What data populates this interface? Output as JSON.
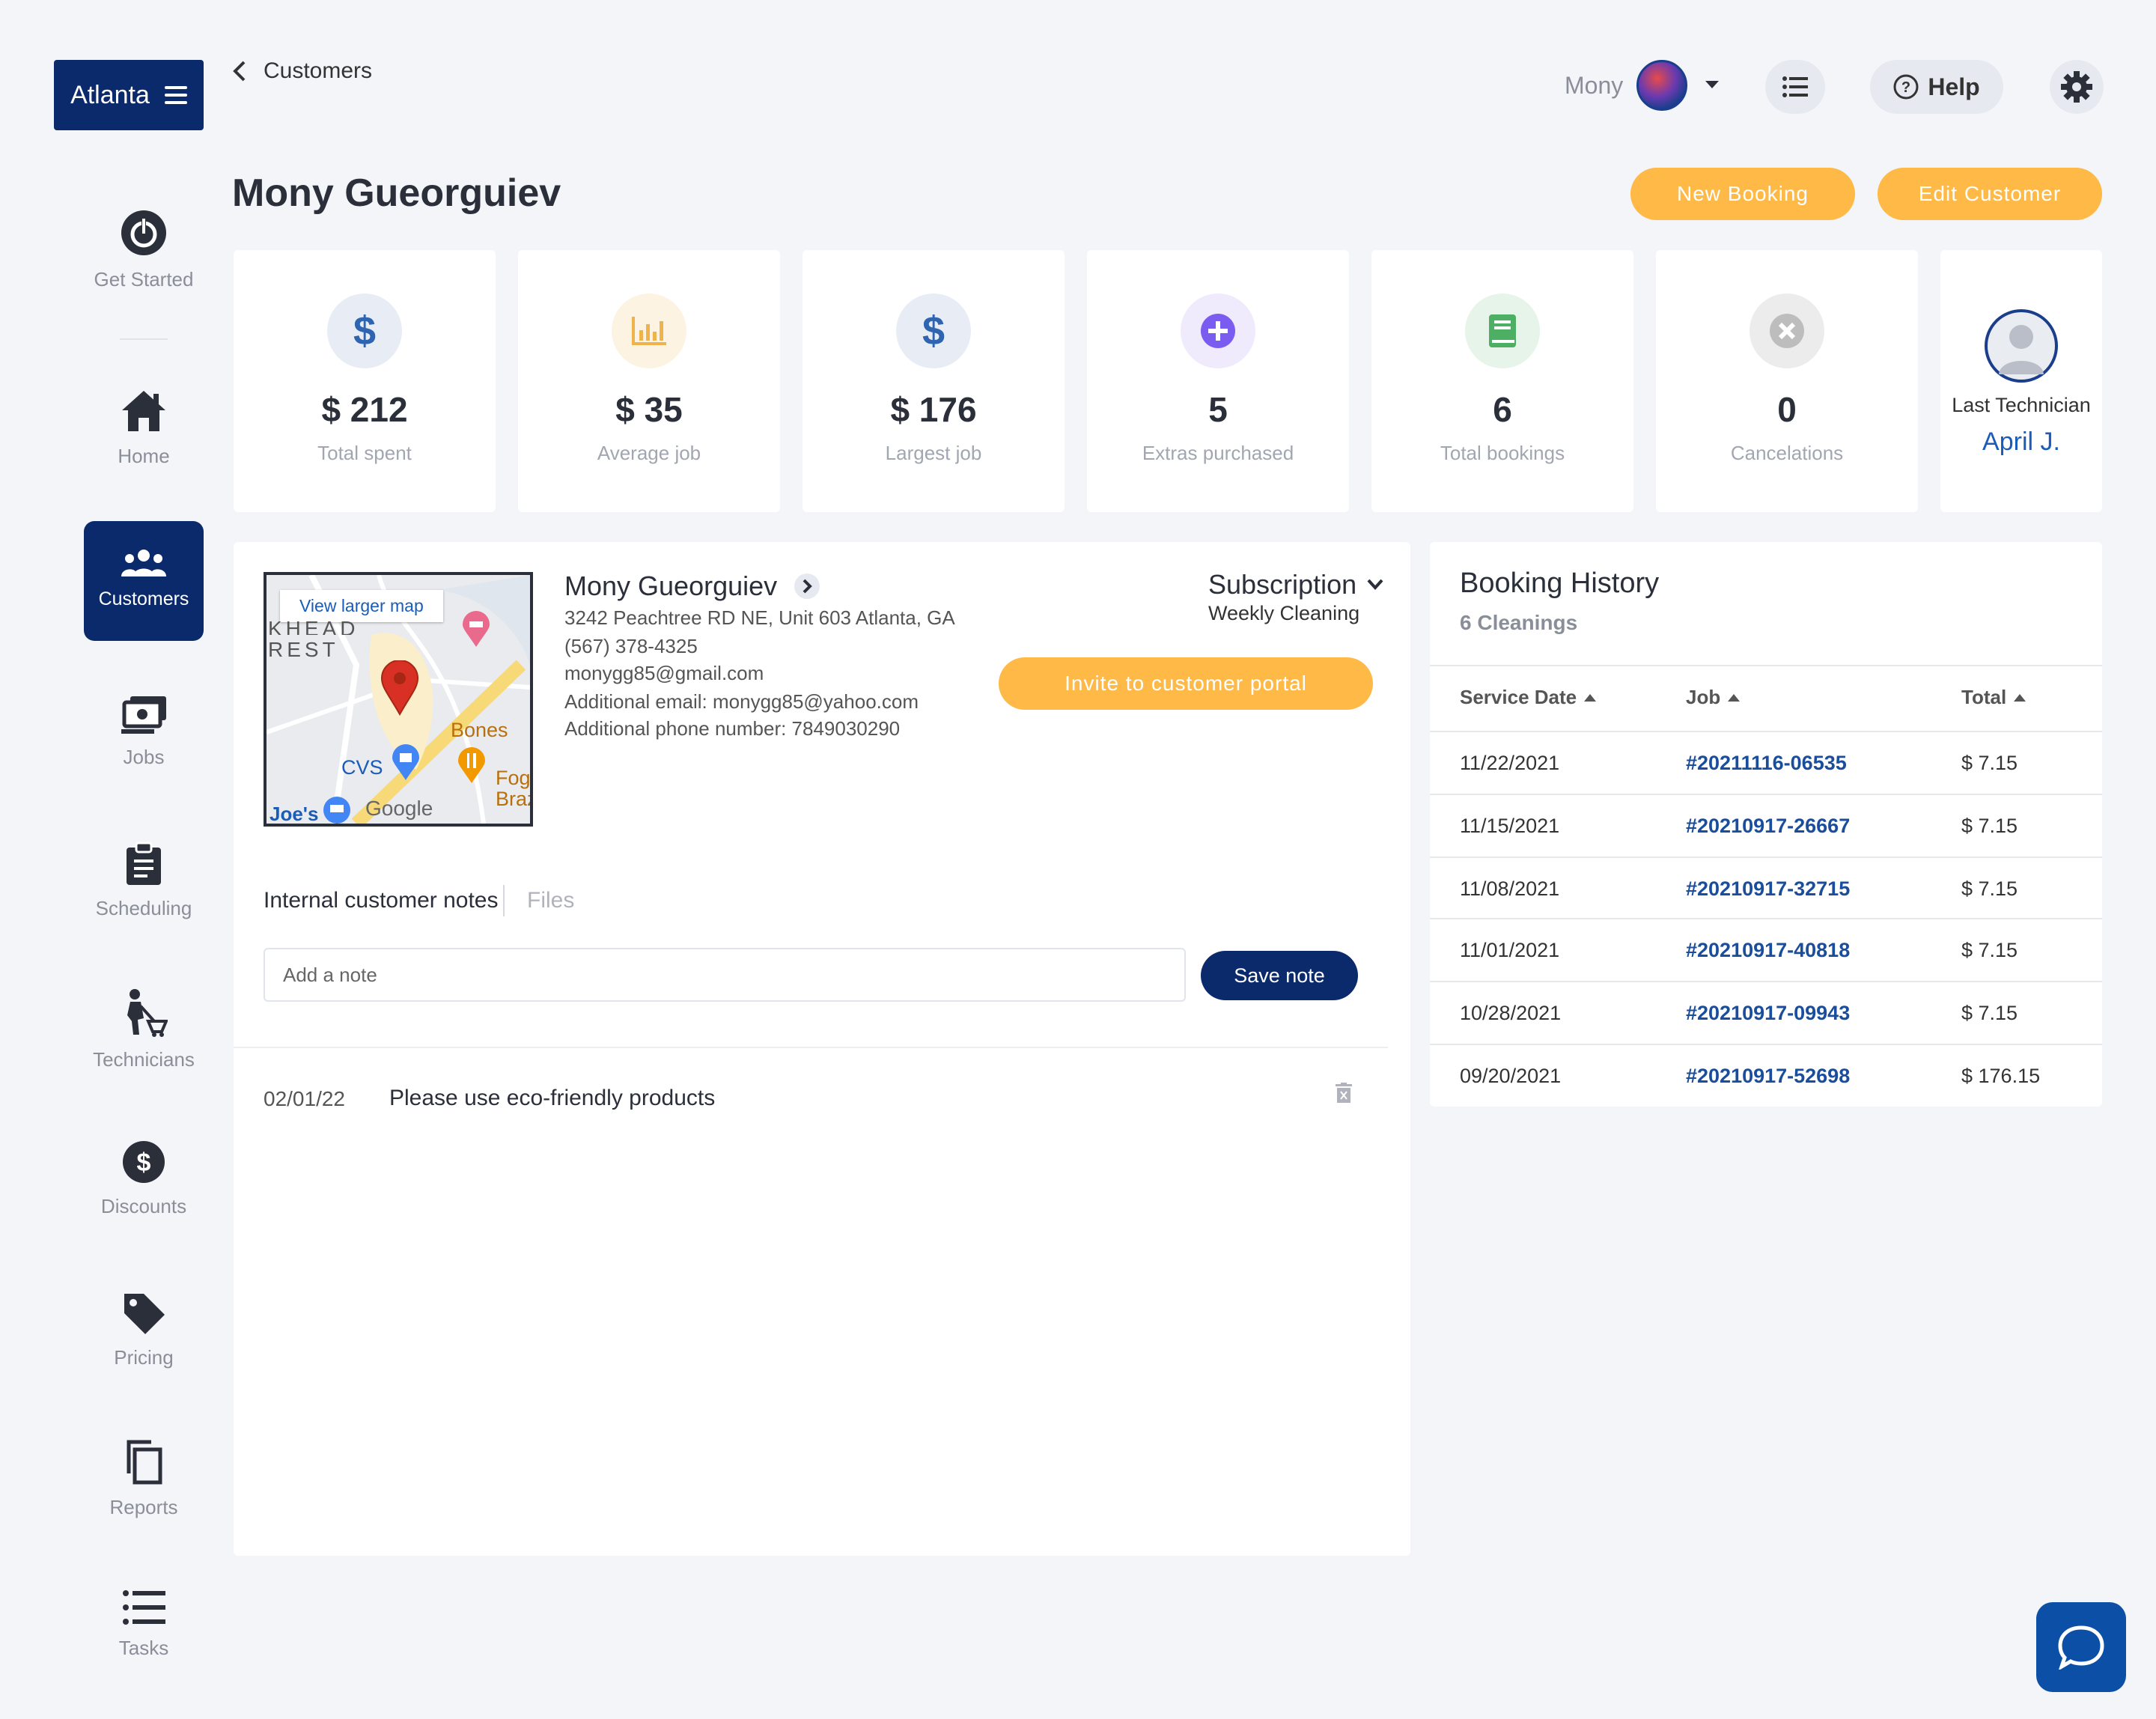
{
  "brand": {
    "label": "Atlanta"
  },
  "nav": {
    "get_started": "Get Started",
    "home": "Home",
    "customers": "Customers",
    "jobs": "Jobs",
    "scheduling": "Scheduling",
    "technicians": "Technicians",
    "discounts": "Discounts",
    "pricing": "Pricing",
    "reports": "Reports",
    "tasks": "Tasks"
  },
  "breadcrumb": {
    "label": "Customers"
  },
  "user": {
    "name": "Mony"
  },
  "help": {
    "label": "Help"
  },
  "page": {
    "title": "Mony Gueorguiev"
  },
  "actions": {
    "new_booking": "New Booking",
    "edit_customer": "Edit Customer"
  },
  "stats": [
    {
      "value": "$ 212",
      "label": "Total spent",
      "icon": "dollar-icon",
      "color": "#2f64b0"
    },
    {
      "value": "$ 35",
      "label": "Average job",
      "icon": "bar-chart-icon",
      "color": "#f0b24a"
    },
    {
      "value": "$ 176",
      "label": "Largest job",
      "icon": "dollar-icon",
      "color": "#2f64b0"
    },
    {
      "value": "5",
      "label": "Extras purchased",
      "icon": "plus-circle-icon",
      "color": "#7b5cf0"
    },
    {
      "value": "6",
      "label": "Total bookings",
      "icon": "book-icon",
      "color": "#4caf63"
    },
    {
      "value": "0",
      "label": "Cancelations",
      "icon": "x-circle-icon",
      "color": "#bdbdbd"
    }
  ],
  "last_technician": {
    "label": "Last Technician",
    "name": "April J."
  },
  "map": {
    "link": "View larger map",
    "labels": {
      "area": "REST",
      "area2": "KHEAD",
      "bones": "Bones",
      "cvs": "CVS",
      "fog": "Fog",
      "braz": "Braz",
      "joes": "Joe's",
      "google": "Google"
    }
  },
  "customer": {
    "name": "Mony Gueorguiev",
    "address": "3242 Peachtree RD NE, Unit 603 Atlanta, GA",
    "phone": "(567) 378-4325",
    "email": "monygg85@gmail.com",
    "additional_email": "Additional email: monygg85@yahoo.com",
    "additional_phone": "Additional phone number: 7849030290"
  },
  "subscription": {
    "label": "Subscription",
    "plan": "Weekly Cleaning"
  },
  "invite": {
    "label": "Invite to customer portal"
  },
  "notes": {
    "tab_notes": "Internal customer notes",
    "tab_files": "Files",
    "placeholder": "Add a note",
    "save_label": "Save note",
    "items": [
      {
        "date": "02/01/22",
        "text": "Please use eco-friendly products"
      }
    ]
  },
  "history": {
    "title": "Booking History",
    "subtitle": "6 Cleanings",
    "columns": {
      "date": "Service Date",
      "job": "Job",
      "total": "Total"
    },
    "rows": [
      {
        "date": "11/22/2021",
        "job": "#20211116-06535",
        "total": "$ 7.15"
      },
      {
        "date": "11/15/2021",
        "job": "#20210917-26667",
        "total": "$ 7.15"
      },
      {
        "date": "11/08/2021",
        "job": "#20210917-32715",
        "total": "$ 7.15"
      },
      {
        "date": "11/01/2021",
        "job": "#20210917-40818",
        "total": "$ 7.15"
      },
      {
        "date": "10/28/2021",
        "job": "#20210917-09943",
        "total": "$ 7.15"
      },
      {
        "date": "09/20/2021",
        "job": "#20210917-52698",
        "total": "$ 176.15"
      }
    ]
  }
}
